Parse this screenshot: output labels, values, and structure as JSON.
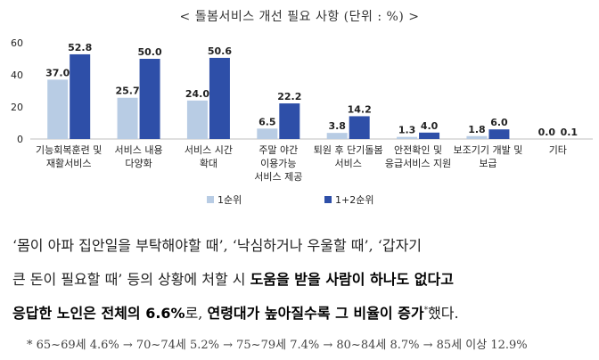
{
  "chart_data": {
    "type": "bar",
    "title": "< 돌봄서비스 개선 필요 사항 (단위 : %) >",
    "categories": [
      [
        "기능회복훈련 및",
        "재활서비스"
      ],
      [
        "서비스 내용",
        "다양화"
      ],
      [
        "서비스 시간",
        "확대"
      ],
      [
        "주말 야간",
        "이용가능",
        "서비스 제공"
      ],
      [
        "퇴원 후 단기돌봄",
        "서비스"
      ],
      [
        "안전확인 및",
        "응급서비스 지원"
      ],
      [
        "보조기기 개발 및",
        "보급"
      ],
      [
        "기타"
      ]
    ],
    "series": [
      {
        "name": "1순위",
        "color": "#b8cce4",
        "values": [
          37.0,
          25.7,
          24.0,
          6.5,
          3.8,
          1.3,
          1.8,
          0.0
        ]
      },
      {
        "name": "1+2순위",
        "color": "#2e4fa8",
        "values": [
          52.8,
          50.0,
          50.6,
          22.2,
          14.2,
          4.0,
          6.0,
          0.1
        ]
      }
    ],
    "ylim": [
      0,
      60
    ],
    "yticks": [
      0,
      20,
      40,
      60
    ],
    "grid": false,
    "legend_position": "bottom-center"
  },
  "paragraph": {
    "line1": "‘몸이 아파 집안일을 부탁해야할 때’, ‘낙심하거나 우울할 때’, ‘갑자기",
    "line2_plain": "큰 돈이 필요할 때’ 등의 상황에 처할 시 ",
    "line2_bold": "도움을 받을 사람이 하나도 없다고",
    "line3_bold1": "응답한 노인은 전체의 6.6%",
    "line3_plain1": "로, ",
    "line3_bold2": "연령대가 높아질수록 그 비율이 증가",
    "line3_sup": "*",
    "line3_plain2": "했다."
  },
  "footnote": "* 65~69세 4.6% → 70~74세 5.2% → 75~79세 7.4% → 80~84세 8.7% → 85세 이상 12.9%"
}
